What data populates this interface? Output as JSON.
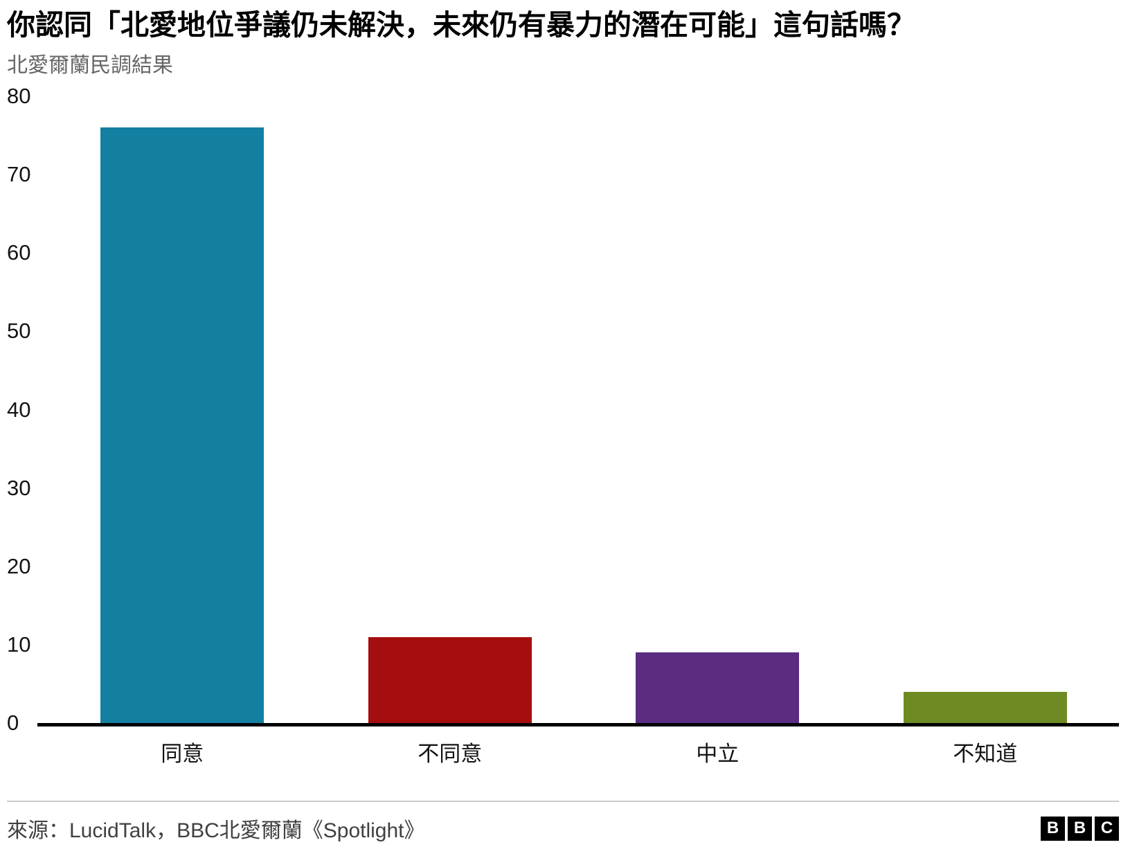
{
  "header": {
    "title": "你認同「北愛地位爭議仍未解決，未來仍有暴力的潛在可能」這句話嗎？",
    "subtitle": "北愛爾蘭民調結果"
  },
  "chart_data": {
    "type": "bar",
    "title": "你認同「北愛地位爭議仍未解決，未來仍有暴力的潛在可能」這句話嗎？",
    "subtitle": "北愛爾蘭民調結果",
    "categories": [
      "同意",
      "不同意",
      "中立",
      "不知道"
    ],
    "values": [
      76,
      11,
      9,
      4
    ],
    "bar_colors": [
      "#1380A1",
      "#A50E0E",
      "#5A2D82",
      "#6D8B22"
    ],
    "xlabel": "",
    "ylabel": "",
    "ylim": [
      0,
      80
    ],
    "yticks": [
      0,
      10,
      20,
      30,
      40,
      50,
      60,
      70,
      80
    ],
    "grid": false,
    "legend": "none"
  },
  "footer": {
    "source": "來源：LucidTalk，BBC北愛爾蘭《Spotlight》",
    "logo_letters": [
      "B",
      "B",
      "C"
    ]
  }
}
